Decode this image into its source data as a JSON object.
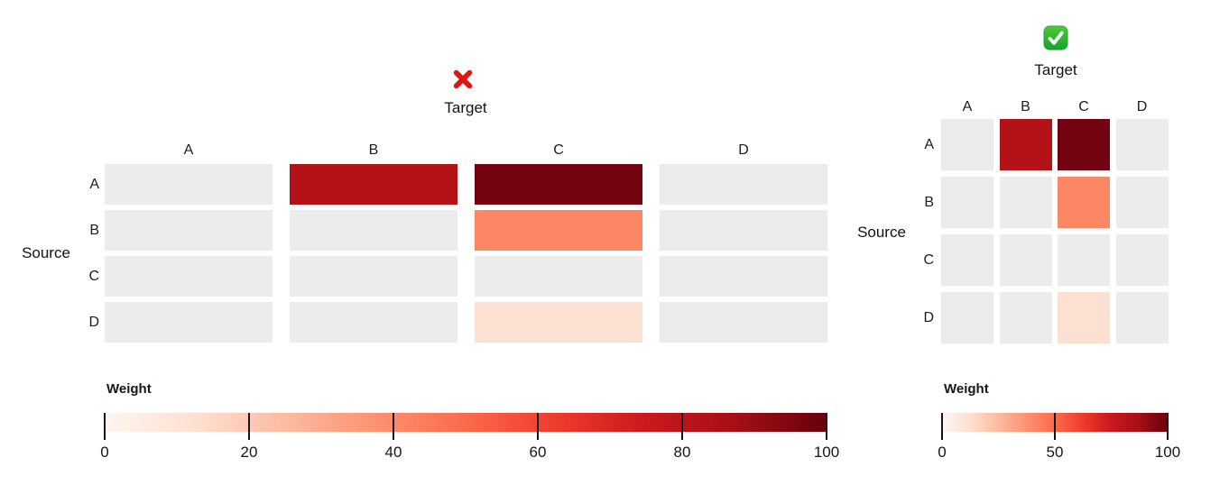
{
  "colors": {
    "empty_cell": "#ECECEC",
    "text": "#121212",
    "tick_line": "#15151F",
    "cross_red": "#E0150F",
    "check_green_top": "#4CCB38",
    "check_green_bottom": "#14A32B",
    "check_mark_white": "#FFFFFF",
    "reds_gradient_stops": [
      "#FFF5F0",
      "#FEE0D2",
      "#FCBBA1",
      "#FC9272",
      "#FB6A4A",
      "#EF3B2C",
      "#CB181D",
      "#A50F15",
      "#67000D"
    ]
  },
  "chart_data": [
    {
      "id": "stretched-heatmap",
      "type": "heatmap",
      "status_icon": "cross-mark-icon",
      "status_meaning": "incorrect",
      "x_axis_title": "Target",
      "y_axis_title": "Source",
      "x_labels": [
        "A",
        "B",
        "C",
        "D"
      ],
      "y_labels": [
        "A",
        "B",
        "C",
        "D"
      ],
      "values": [
        [
          0,
          80,
          100,
          0
        ],
        [
          0,
          0,
          45,
          0
        ],
        [
          0,
          0,
          0,
          0
        ],
        [
          0,
          0,
          10,
          0
        ]
      ],
      "cell_colors": [
        [
          "#ECECEC",
          "#B31217",
          "#730310",
          "#ECECEC"
        ],
        [
          "#ECECEC",
          "#ECECEC",
          "#FB8765",
          "#ECECEC"
        ],
        [
          "#ECECEC",
          "#ECECEC",
          "#ECECEC",
          "#ECECEC"
        ],
        [
          "#ECECEC",
          "#ECECEC",
          "#FCE1D2",
          "#ECECEC"
        ]
      ],
      "legend": {
        "title": "Weight",
        "min": 0,
        "max": 100,
        "ticks": [
          0,
          20,
          40,
          60,
          80,
          100
        ]
      }
    },
    {
      "id": "square-heatmap",
      "type": "heatmap",
      "status_icon": "check-mark-icon",
      "status_meaning": "correct",
      "x_axis_title": "Target",
      "y_axis_title": "Source",
      "x_labels": [
        "A",
        "B",
        "C",
        "D"
      ],
      "y_labels": [
        "A",
        "B",
        "C",
        "D"
      ],
      "values": [
        [
          0,
          80,
          100,
          0
        ],
        [
          0,
          0,
          45,
          0
        ],
        [
          0,
          0,
          0,
          0
        ],
        [
          0,
          0,
          10,
          0
        ]
      ],
      "cell_colors": [
        [
          "#ECECEC",
          "#B31217",
          "#730310",
          "#ECECEC"
        ],
        [
          "#ECECEC",
          "#ECECEC",
          "#FB8765",
          "#ECECEC"
        ],
        [
          "#ECECEC",
          "#ECECEC",
          "#ECECEC",
          "#ECECEC"
        ],
        [
          "#ECECEC",
          "#ECECEC",
          "#FCE1D2",
          "#ECECEC"
        ]
      ],
      "legend": {
        "title": "Weight",
        "min": 0,
        "max": 100,
        "ticks": [
          0,
          50,
          100
        ]
      }
    }
  ]
}
